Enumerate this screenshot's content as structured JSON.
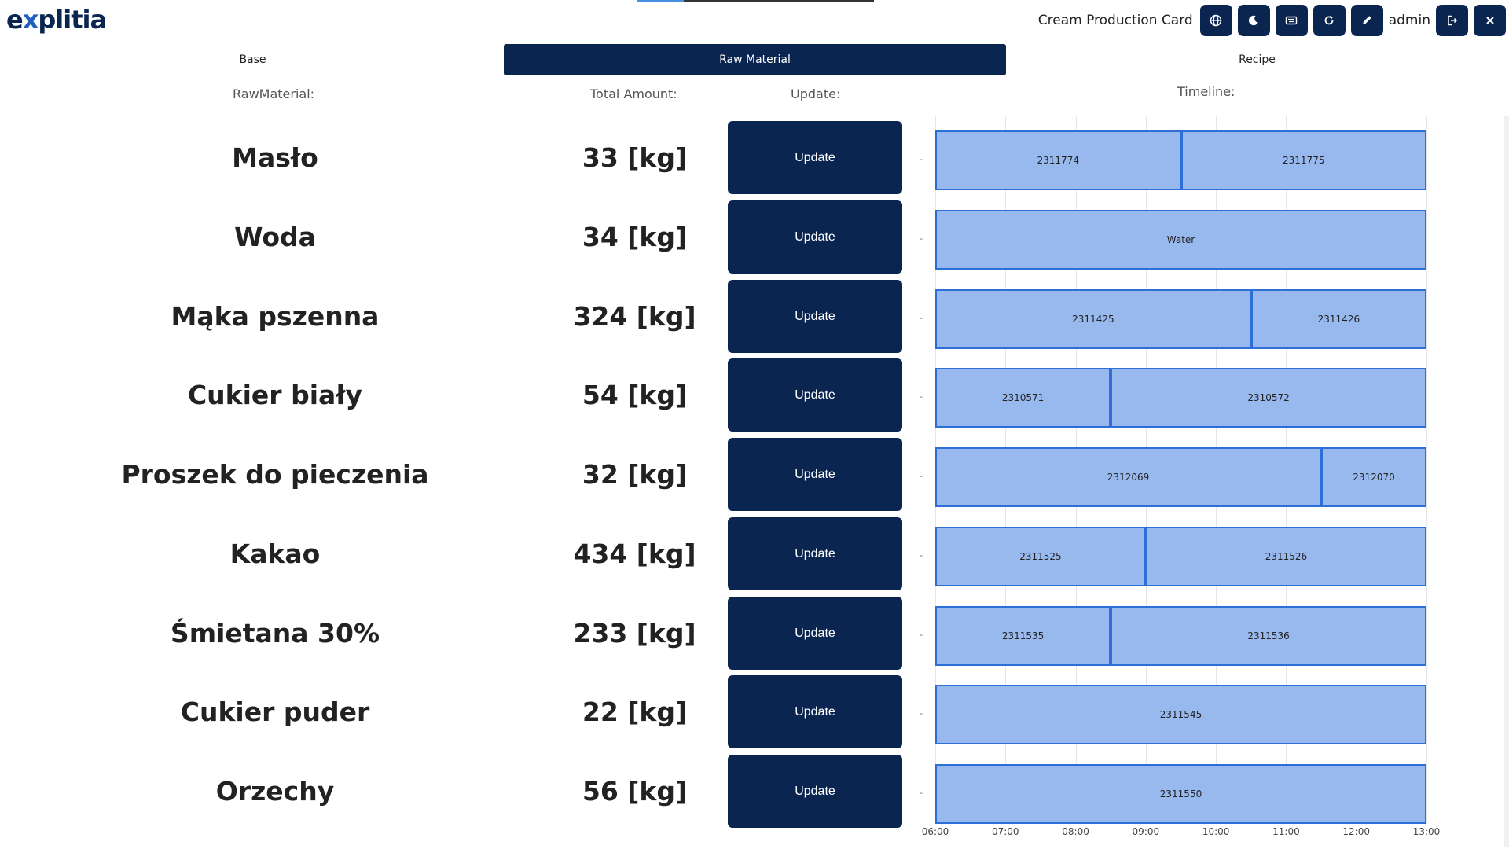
{
  "header": {
    "logo_pre": "e",
    "logo_x": "x",
    "logo_post": "plitia",
    "title": "Cream Production Card",
    "user": "admin",
    "icons": [
      "globe-icon",
      "moon-icon",
      "keyboard-icon",
      "refresh-icon",
      "pencil-icon",
      "logout-icon",
      "close-icon"
    ],
    "loader_progress": 0.2
  },
  "tabs": [
    {
      "label": "Base"
    },
    {
      "label": "Raw Material",
      "active": true
    },
    {
      "label": "Recipe"
    }
  ],
  "columns": {
    "raw_material": "RawMaterial:",
    "total_amount": "Total Amount:",
    "update": "Update:",
    "timeline": "Timeline:"
  },
  "rows": [
    {
      "name": "Masło",
      "amount": "33 [kg]",
      "update_label": "Update",
      "dash": "-",
      "bars": [
        {
          "label": "2311774",
          "start": "06:00",
          "end": "09:30"
        },
        {
          "label": "2311775",
          "start": "09:30",
          "end": "13:00"
        }
      ]
    },
    {
      "name": "Woda",
      "amount": "34 [kg]",
      "update_label": "Update",
      "dash": "-",
      "bars": [
        {
          "label": "Water",
          "start": "06:00",
          "end": "13:00"
        }
      ]
    },
    {
      "name": "Mąka pszenna",
      "amount": "324 [kg]",
      "update_label": "Update",
      "dash": "-",
      "bars": [
        {
          "label": "2311425",
          "start": "06:00",
          "end": "10:30"
        },
        {
          "label": "2311426",
          "start": "10:30",
          "end": "13:00"
        }
      ]
    },
    {
      "name": "Cukier biały",
      "amount": "54 [kg]",
      "update_label": "Update",
      "dash": "-",
      "bars": [
        {
          "label": "2310571",
          "start": "06:00",
          "end": "08:30"
        },
        {
          "label": "2310572",
          "start": "08:30",
          "end": "13:00"
        }
      ]
    },
    {
      "name": "Proszek do pieczenia",
      "amount": "32 [kg]",
      "update_label": "Update",
      "dash": "-",
      "bars": [
        {
          "label": "2312069",
          "start": "06:00",
          "end": "11:30"
        },
        {
          "label": "2312070",
          "start": "11:30",
          "end": "13:00"
        }
      ]
    },
    {
      "name": "Kakao",
      "amount": "434 [kg]",
      "update_label": "Update",
      "dash": "-",
      "bars": [
        {
          "label": "2311525",
          "start": "06:00",
          "end": "09:00"
        },
        {
          "label": "2311526",
          "start": "09:00",
          "end": "13:00"
        }
      ]
    },
    {
      "name": "Śmietana 30%",
      "amount": "233 [kg]",
      "update_label": "Update",
      "dash": "-",
      "bars": [
        {
          "label": "2311535",
          "start": "06:00",
          "end": "08:30"
        },
        {
          "label": "2311536",
          "start": "08:30",
          "end": "13:00"
        }
      ]
    },
    {
      "name": "Cukier puder",
      "amount": "22 [kg]",
      "update_label": "Update",
      "dash": "-",
      "bars": [
        {
          "label": "2311545",
          "start": "06:00",
          "end": "13:00"
        }
      ]
    },
    {
      "name": "Orzechy",
      "amount": "56 [kg]",
      "update_label": "Update",
      "dash": "-",
      "bars": [
        {
          "label": "2311550",
          "start": "06:00",
          "end": "13:00"
        }
      ]
    }
  ],
  "timeline": {
    "ticks": [
      "06:00",
      "07:00",
      "08:00",
      "09:00",
      "10:00",
      "11:00",
      "12:00",
      "13:00"
    ],
    "bar_color": "#98b9ee",
    "bar_border": "#2d6fd6"
  },
  "colors": {
    "primary": "#0b2551",
    "accent": "#1f5fbf"
  }
}
